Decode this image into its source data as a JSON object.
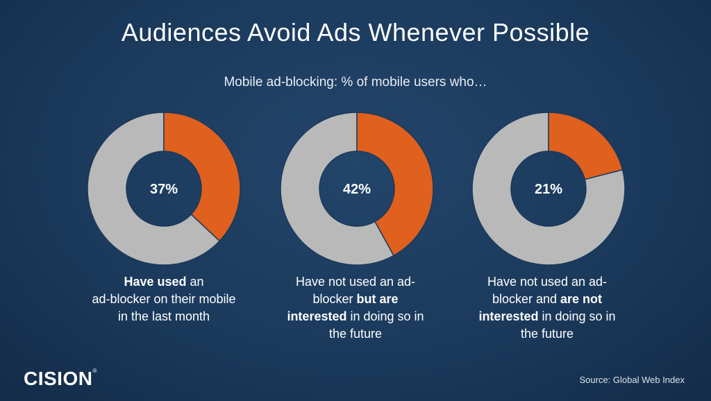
{
  "title": "Audiences Avoid Ads Whenever Possible",
  "subtitle": "Mobile ad-blocking: % of mobile users who…",
  "colors": {
    "accent": "#e0601d",
    "remainder": "#b9b9b9",
    "background": "#1b3a5c"
  },
  "chart_data": {
    "type": "pie",
    "variant": "donut",
    "charts": [
      {
        "value": 37,
        "label": "37%",
        "caption": [
          {
            "text": "Have used",
            "bold": true
          },
          {
            "text": " an",
            "bold": false
          },
          {
            "text": "\nad-blocker on their mobile\nin the last month",
            "bold": false
          }
        ]
      },
      {
        "value": 42,
        "label": "42%",
        "caption": [
          {
            "text": "Have not used an ad-\nblocker ",
            "bold": false
          },
          {
            "text": "but are\ninterested",
            "bold": true
          },
          {
            "text": " in doing so in\nthe future",
            "bold": false
          }
        ]
      },
      {
        "value": 21,
        "label": "21%",
        "caption": [
          {
            "text": "Have not used an ad-\nblocker and ",
            "bold": false
          },
          {
            "text": "are not\ninterested",
            "bold": true
          },
          {
            "text": " in doing so in\nthe future",
            "bold": false
          }
        ]
      }
    ]
  },
  "logo": {
    "text": "CISION",
    "mark": "®"
  },
  "source": "Source:  Global Web Index"
}
